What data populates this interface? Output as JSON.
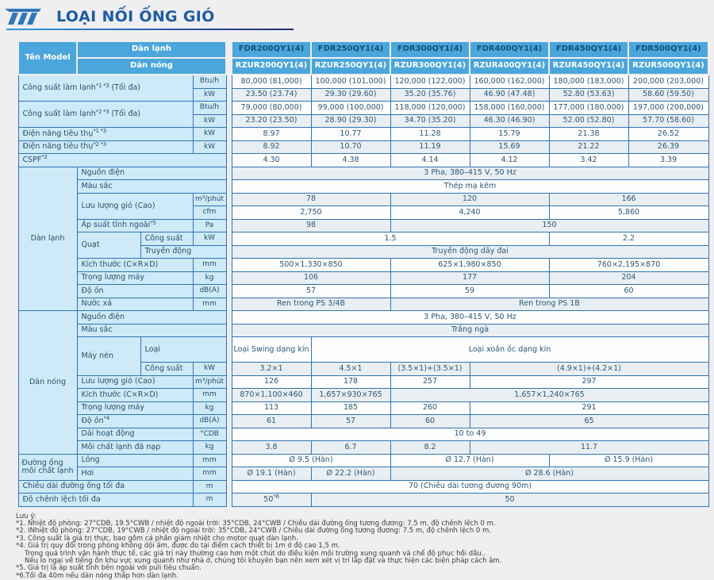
{
  "page": {
    "title": "LOẠI NỐI ỐNG GIÓ"
  },
  "colors": {
    "accent_blue": "#4ba6db",
    "dark_blue_text": "#12527f",
    "label_bg": "#cee9f8",
    "grid_border": "#2e75b5",
    "title_blue": "#1d5ca5",
    "page_bg": "#efeef0"
  },
  "table": {
    "grid": [
      {
        "cls": "hrow",
        "cells": [
          {
            "k": "corner",
            "t": "Tên Model",
            "r": 2
          },
          {
            "k": "hgroup",
            "t": "Dàn lạnh",
            "c": 3
          },
          {
            "k": "gut",
            "r": 34
          },
          {
            "k": "mfdr",
            "t": "FDR200QY1(4)"
          },
          {
            "k": "mfdr",
            "t": "FDR250QY1(4)"
          },
          {
            "k": "mfdr",
            "t": "FDR300QY1(4)"
          },
          {
            "k": "mfdr",
            "t": "FDR400QY1(4)"
          },
          {
            "k": "mfdr",
            "t": "FDR450QY1(4)"
          },
          {
            "k": "mfdr",
            "t": "FDR500QY1(4)"
          }
        ]
      },
      {
        "cls": "hrow",
        "cells": [
          {
            "k": "hgroup",
            "t": "Dàn nóng",
            "c": 3
          },
          {
            "k": "mrzur",
            "t": "RZUR200QY1(4)"
          },
          {
            "k": "mrzur",
            "t": "RZUR250QY1(4)"
          },
          {
            "k": "mrzur",
            "t": "RZUR300QY1(4)"
          },
          {
            "k": "mrzur",
            "t": "RZUR400QY1(4)"
          },
          {
            "k": "mrzur",
            "t": "RZUR450QY1(4)"
          },
          {
            "k": "mrzur",
            "t": "RZUR500QY1(4)"
          }
        ]
      },
      {
        "cells": [
          {
            "k": "lab",
            "t": "Công suất làm lạnh",
            "sup": "*1 *3",
            "t2": " (Tối đa)",
            "c": 3,
            "r": 2
          },
          {
            "k": "unit",
            "t": "Btu/h"
          },
          {
            "k": "val",
            "t": "80,000 (81,000)"
          },
          {
            "k": "val",
            "t": "100,000 (101,000)"
          },
          {
            "k": "val",
            "t": "120,000 (122,000)"
          },
          {
            "k": "val",
            "t": "160,000 (162,000)"
          },
          {
            "k": "val",
            "t": "180,000 (183,000)"
          },
          {
            "k": "val",
            "t": "200,000 (203,000)"
          }
        ]
      },
      {
        "cells": [
          {
            "k": "unit",
            "t": "kW"
          },
          {
            "k": "val",
            "t": "23.50 (23.74)"
          },
          {
            "k": "val",
            "t": "29.30 (29.60)"
          },
          {
            "k": "val",
            "t": "35.20 (35.76)"
          },
          {
            "k": "val",
            "t": "46.90 (47.48)"
          },
          {
            "k": "val",
            "t": "52.80 (53.63)"
          },
          {
            "k": "val",
            "t": "58.60 (59.50)"
          }
        ]
      },
      {
        "cells": [
          {
            "k": "lab",
            "t": "Công suất làm lạnh",
            "sup": "*2 *3",
            "t2": " (Tối đa)",
            "c": 3,
            "r": 2
          },
          {
            "k": "unit",
            "t": "Btu/h"
          },
          {
            "k": "val",
            "t": "79,000 (80,000)"
          },
          {
            "k": "val",
            "t": "99,000 (100,000)"
          },
          {
            "k": "val",
            "t": "118,000 (120,000)"
          },
          {
            "k": "val",
            "t": "158,000 (160,000)"
          },
          {
            "k": "val",
            "t": "177,000 (180,000)"
          },
          {
            "k": "val",
            "t": "197,000 (200,000)"
          }
        ]
      },
      {
        "cells": [
          {
            "k": "unit",
            "t": "kW"
          },
          {
            "k": "val",
            "t": "23.20 (23.50)"
          },
          {
            "k": "val",
            "t": "28.90 (29.30)"
          },
          {
            "k": "val",
            "t": "34.70 (35.20)"
          },
          {
            "k": "val",
            "t": "46.30 (46.90)"
          },
          {
            "k": "val",
            "t": "52.00 (52.80)"
          },
          {
            "k": "val",
            "t": "57.70 (58.60)"
          }
        ]
      },
      {
        "cells": [
          {
            "k": "lab",
            "t": "Điện năng tiêu thụ",
            "sup": "*1 *3",
            "c": 3
          },
          {
            "k": "unit",
            "t": "kW"
          },
          {
            "k": "val",
            "t": "8.97"
          },
          {
            "k": "val",
            "t": "10.77"
          },
          {
            "k": "val",
            "t": "11.28"
          },
          {
            "k": "val",
            "t": "15.79"
          },
          {
            "k": "val",
            "t": "21.38"
          },
          {
            "k": "val",
            "t": "26.52"
          }
        ]
      },
      {
        "cells": [
          {
            "k": "lab",
            "t": "Điện năng tiêu thụ",
            "sup": "*2 *3",
            "c": 3
          },
          {
            "k": "unit",
            "t": "kW"
          },
          {
            "k": "val",
            "t": "8.92"
          },
          {
            "k": "val",
            "t": "10.70"
          },
          {
            "k": "val",
            "t": "11.19"
          },
          {
            "k": "val",
            "t": "15.69"
          },
          {
            "k": "val",
            "t": "21.22"
          },
          {
            "k": "val",
            "t": "26.39"
          }
        ]
      },
      {
        "cells": [
          {
            "k": "lab",
            "t": "CSPF",
            "sup": "*2",
            "c": 4
          },
          {
            "k": "val",
            "t": "4.30"
          },
          {
            "k": "val",
            "t": "4.38"
          },
          {
            "k": "val",
            "t": "4.14"
          },
          {
            "k": "val",
            "t": "4.12"
          },
          {
            "k": "val",
            "t": "3.42"
          },
          {
            "k": "val",
            "t": "3.39"
          }
        ]
      },
      {
        "cells": [
          {
            "k": "sec",
            "t": "Dàn lạnh",
            "r": 11
          },
          {
            "k": "lab",
            "t": "Nguồn điện",
            "c": 3
          },
          {
            "k": "val",
            "t": "3 Pha, 380–415 V, 50 Hz",
            "c": 6
          }
        ]
      },
      {
        "cells": [
          {
            "k": "lab",
            "t": "Màu sắc",
            "c": 3
          },
          {
            "k": "val",
            "t": "Thép mạ kẽm",
            "c": 6
          }
        ]
      },
      {
        "cells": [
          {
            "k": "lab",
            "t": "Lưu lượng gió (Cao)",
            "c": 2,
            "r": 2
          },
          {
            "k": "unit",
            "t": "m³/phút"
          },
          {
            "k": "val",
            "t": "78",
            "c": 2
          },
          {
            "k": "val",
            "t": "120",
            "c": 2
          },
          {
            "k": "val",
            "t": "166",
            "c": 2
          }
        ]
      },
      {
        "cells": [
          {
            "k": "unit",
            "t": "cfm"
          },
          {
            "k": "val",
            "t": "2,750",
            "c": 2
          },
          {
            "k": "val",
            "t": "4,240",
            "c": 2
          },
          {
            "k": "val",
            "t": "5,860",
            "c": 2
          }
        ]
      },
      {
        "cells": [
          {
            "k": "lab",
            "t": "Áp suất tĩnh ngoài",
            "sup": "*5",
            "c": 2
          },
          {
            "k": "unit",
            "t": "Pa"
          },
          {
            "k": "val",
            "t": "98",
            "c": 2
          },
          {
            "k": "val",
            "t": "150",
            "c": 4
          }
        ]
      },
      {
        "cells": [
          {
            "k": "lab",
            "t": "Quạt",
            "r": 2
          },
          {
            "k": "lab",
            "t": "Công suất"
          },
          {
            "k": "unit",
            "t": "kW"
          },
          {
            "k": "val",
            "t": "1.5",
            "c": 4
          },
          {
            "k": "val",
            "t": "2.2",
            "c": 2
          }
        ]
      },
      {
        "cells": [
          {
            "k": "lab",
            "t": "Truyền động",
            "c": 2
          },
          {
            "k": "val",
            "t": "Truyền động dây đai",
            "c": 6
          }
        ]
      },
      {
        "cells": [
          {
            "k": "lab",
            "t": "Kích thước (C×R×D)",
            "c": 2
          },
          {
            "k": "unit",
            "t": "mm"
          },
          {
            "k": "val",
            "t": "500×1,330×850",
            "c": 2
          },
          {
            "k": "val",
            "t": "625×1,980×850",
            "c": 2
          },
          {
            "k": "val",
            "t": "760×2,195×870",
            "c": 2
          }
        ]
      },
      {
        "cells": [
          {
            "k": "lab",
            "t": "Trọng lượng máy",
            "c": 2
          },
          {
            "k": "unit",
            "t": "kg"
          },
          {
            "k": "val",
            "t": "106",
            "c": 2
          },
          {
            "k": "val",
            "t": "177",
            "c": 2
          },
          {
            "k": "val",
            "t": "204",
            "c": 2
          }
        ]
      },
      {
        "cells": [
          {
            "k": "lab",
            "t": "Độ ồn",
            "c": 2
          },
          {
            "k": "unit",
            "t": "dB(A)"
          },
          {
            "k": "val",
            "t": "57",
            "c": 2
          },
          {
            "k": "val",
            "t": "59",
            "c": 2
          },
          {
            "k": "val",
            "t": "60",
            "c": 2
          }
        ]
      },
      {
        "cells": [
          {
            "k": "lab",
            "t": "Nước xả",
            "c": 2
          },
          {
            "k": "unit",
            "t": "mm"
          },
          {
            "k": "val",
            "t": "Ren trong PS 3/4B",
            "c": 2
          },
          {
            "k": "val",
            "t": "Ren trong PS 1B",
            "c": 4
          }
        ]
      },
      {
        "cells": [
          {
            "k": "sec",
            "t": "Dàn nóng",
            "r": 10
          },
          {
            "k": "lab",
            "t": "Nguồn điện",
            "c": 3
          },
          {
            "k": "val",
            "t": "3 Pha, 380–415 V, 50 Hz",
            "c": 6
          }
        ]
      },
      {
        "cells": [
          {
            "k": "lab",
            "t": "Màu sắc",
            "c": 3
          },
          {
            "k": "val",
            "t": "Trắng ngà",
            "c": 6
          }
        ]
      },
      {
        "cls": "tall",
        "cells": [
          {
            "k": "lab",
            "t": "Máy nén",
            "r": 2
          },
          {
            "k": "lab",
            "t": "Loại",
            "c": 2
          },
          {
            "k": "val",
            "t": "Loại Swing dạng kín"
          },
          {
            "k": "val",
            "t": "Loại xoắn ốc dạng kín",
            "c": 5
          }
        ]
      },
      {
        "cells": [
          {
            "k": "lab",
            "t": "Công suất"
          },
          {
            "k": "unit",
            "t": "kW"
          },
          {
            "k": "val",
            "t": "3.2×1"
          },
          {
            "k": "val",
            "t": "4.5×1"
          },
          {
            "k": "val",
            "t": "(3.5×1)+(3.5×1)"
          },
          {
            "k": "val",
            "t": "(4.9×1)+(4.2×1)",
            "c": 3
          }
        ]
      },
      {
        "cells": [
          {
            "k": "lab",
            "t": "Lưu lượng gió (Cao)",
            "c": 2
          },
          {
            "k": "unit",
            "t": "m³/phút"
          },
          {
            "k": "val",
            "t": "126"
          },
          {
            "k": "val",
            "t": "178"
          },
          {
            "k": "val",
            "t": "257"
          },
          {
            "k": "val",
            "t": "297",
            "c": 3
          }
        ]
      },
      {
        "cells": [
          {
            "k": "lab",
            "t": "Kích thước (C×R×D)",
            "c": 2
          },
          {
            "k": "unit",
            "t": "mm"
          },
          {
            "k": "val",
            "t": "870×1,100×460"
          },
          {
            "k": "val",
            "t": "1,657×930×765"
          },
          {
            "k": "val",
            "t": "1,657×1,240×765",
            "c": 4
          }
        ]
      },
      {
        "cells": [
          {
            "k": "lab",
            "t": "Trọng lượng máy",
            "c": 2
          },
          {
            "k": "unit",
            "t": "kg"
          },
          {
            "k": "val",
            "t": "113"
          },
          {
            "k": "val",
            "t": "185"
          },
          {
            "k": "val",
            "t": "260"
          },
          {
            "k": "val",
            "t": "291",
            "c": 3
          }
        ]
      },
      {
        "cells": [
          {
            "k": "lab",
            "t": "Độ ồn",
            "sup": "*4",
            "c": 2
          },
          {
            "k": "unit",
            "t": "dB(A)"
          },
          {
            "k": "val",
            "t": "61"
          },
          {
            "k": "val",
            "t": "57"
          },
          {
            "k": "val",
            "t": "60"
          },
          {
            "k": "val",
            "t": "65",
            "c": 3
          }
        ]
      },
      {
        "cells": [
          {
            "k": "lab",
            "t": "Dải hoạt động",
            "c": 2
          },
          {
            "k": "unit",
            "t": "°CDB"
          },
          {
            "k": "val",
            "t": "10 to 49",
            "c": 6
          }
        ]
      },
      {
        "cells": [
          {
            "k": "lab",
            "t": "Môi chất lạnh đã nạp",
            "c": 2
          },
          {
            "k": "unit",
            "t": "kg"
          },
          {
            "k": "val",
            "t": "3.8"
          },
          {
            "k": "val",
            "t": "6.7"
          },
          {
            "k": "val",
            "t": "8.2"
          },
          {
            "k": "val",
            "t": "11.7",
            "c": 3
          }
        ]
      },
      {
        "cells": [
          {
            "k": "secl",
            "t": "Đường ống môi chất lạnh",
            "r": 2
          },
          {
            "k": "lab",
            "t": "Lỏng",
            "c": 2
          },
          {
            "k": "unit",
            "t": "mm"
          },
          {
            "k": "val",
            "t": "Ø 9.5 (Hàn)",
            "c": 2
          },
          {
            "k": "val",
            "t": "Ø 12.7 (Hàn)",
            "c": 2
          },
          {
            "k": "val",
            "t": "Ø 15.9 (Hàn)",
            "c": 2
          }
        ]
      },
      {
        "cells": [
          {
            "k": "lab",
            "t": "Hơi",
            "c": 2
          },
          {
            "k": "unit",
            "t": "mm"
          },
          {
            "k": "val",
            "t": "Ø 19.1 (Hàn)"
          },
          {
            "k": "val",
            "t": "Ø 22.2 (Hàn)"
          },
          {
            "k": "val",
            "t": "Ø 28.6 (Hàn)",
            "c": 4
          }
        ]
      },
      {
        "cells": [
          {
            "k": "lab",
            "t": "Chiều dài đường ống tối đa",
            "c": 3
          },
          {
            "k": "unit",
            "t": "m"
          },
          {
            "k": "val",
            "t": "70 (Chiều dài tương đương 90m)",
            "c": 6
          }
        ]
      },
      {
        "cells": [
          {
            "k": "lab",
            "t": "Độ chênh lệch tối đa",
            "c": 3
          },
          {
            "k": "unit",
            "t": "m"
          },
          {
            "k": "val",
            "t": "50",
            "sup": "*6"
          },
          {
            "k": "val",
            "t": "50",
            "c": 5
          }
        ]
      }
    ]
  },
  "notes": [
    "Lưu ý:",
    "*1. Nhiệt độ phòng: 27°CDB, 19.5°CWB / nhiệt độ ngoài trời: 35°CDB, 24°CWB / Chiều dài đường ống tương đương: 7.5 m, độ chênh lệch 0 m.",
    "*2. INhiệt độ phòng: 27°CDB, 19°CWB / nhiệt độ ngoài trời: 35°CDB, 24°CWB / Chiều dài đường ống tương đương: 7.5 m, độ chênh lệch 0 m.",
    "*3. Công suất là giá trị thực, bao gồm cả phần giảm nhiệt cho motor quạt dàn lạnh.",
    "*4. Giá trị quy đổi trong phòng không dội âm, được đo tại điểm cách thiết bị 1m ở độ cao 1,5 m.",
    "Trong quá trình vận hành thực tế, các giá trị này thường cao hơn một chút do điều kiện môi trường xung quanh và chế độ phục hồi dầu..",
    "Nếu lo ngại về tiếng ồn khu vực xung quanh như nhà ở, chúng tôi khuyên bạn nên xem xét vị trí lắp đặt và thực hiện các biện pháp cách âm.",
    "*5. Giá trị là áp suất tĩnh bên ngoài với puli tiêu chuẩn.",
    "*6.Tối đa 40m nếu dàn nóng thấp hơn dàn lạnh."
  ]
}
